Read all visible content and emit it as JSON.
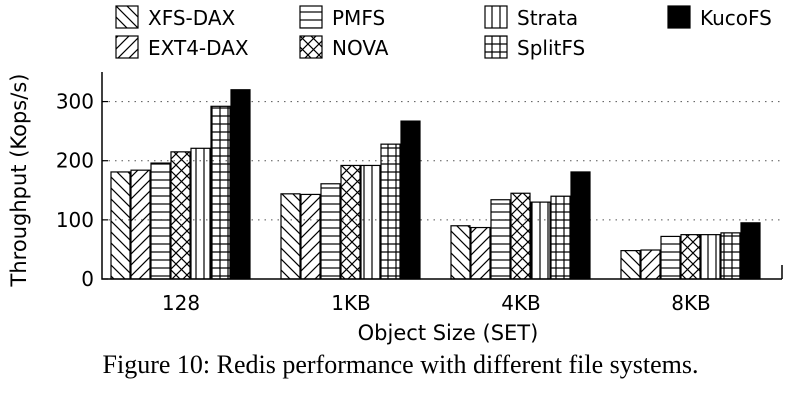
{
  "caption": "Figure 10: Redis performance with different file systems.",
  "chart_data": {
    "type": "bar",
    "title": "",
    "xlabel": "Object Size (SET)",
    "ylabel": "Throughput (Kops/s)",
    "ylim": [
      0,
      350
    ],
    "yticks": [
      0,
      100,
      200,
      300
    ],
    "grid": "horizontal dotted",
    "legend_position": "top",
    "categories": [
      "128",
      "1KB",
      "4KB",
      "8KB"
    ],
    "series": [
      {
        "name": "XFS-DAX",
        "pattern": "backslash-hatch",
        "values": [
          181,
          144,
          90,
          48
        ]
      },
      {
        "name": "EXT4-DAX",
        "pattern": "slash-hatch",
        "values": [
          184,
          143,
          87,
          49
        ]
      },
      {
        "name": "PMFS",
        "pattern": "horizontal-lines",
        "values": [
          196,
          161,
          134,
          72
        ]
      },
      {
        "name": "NOVA",
        "pattern": "crosshatch",
        "values": [
          215,
          192,
          145,
          75
        ]
      },
      {
        "name": "Strata",
        "pattern": "vertical-lines",
        "values": [
          221,
          192,
          130,
          75
        ]
      },
      {
        "name": "SplitFS",
        "pattern": "grid",
        "values": [
          292,
          228,
          140,
          78
        ]
      },
      {
        "name": "KucoFS",
        "pattern": "solid-black",
        "values": [
          320,
          267,
          181,
          95
        ]
      }
    ]
  }
}
